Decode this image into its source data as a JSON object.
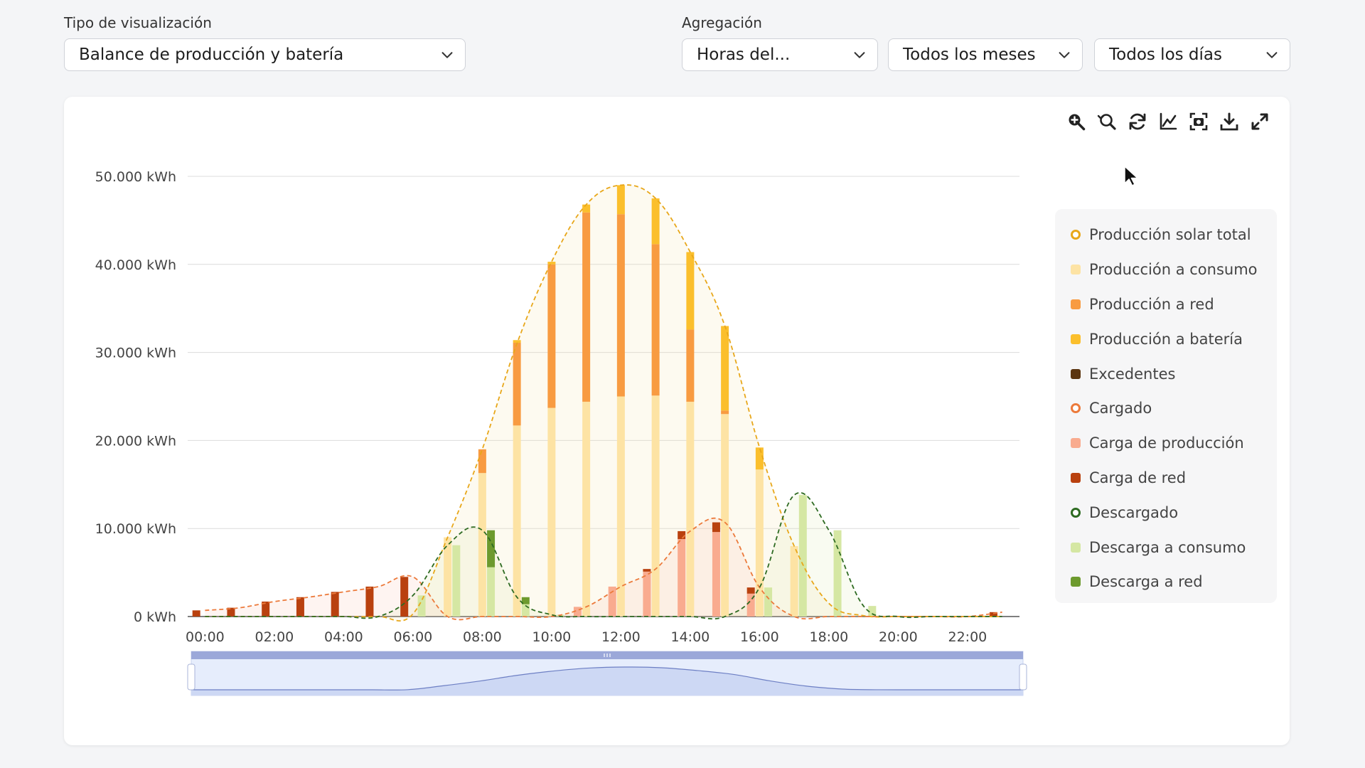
{
  "filters": {
    "viz_label": "Tipo de visualización",
    "viz_value": "Balance de producción y batería",
    "agg_label": "Agregación",
    "agg_value": "Horas del...",
    "months_value": "Todos los meses",
    "days_value": "Todos los días"
  },
  "toolbar": {
    "icons": [
      "zoom-in-icon",
      "zoom-reset-icon",
      "refresh-icon",
      "line-chart-icon",
      "screenshot-icon",
      "download-icon",
      "fullscreen-icon"
    ]
  },
  "colors": {
    "solar_total": "#e8a71a",
    "prod_consumo": "#fde3a4",
    "prod_red": "#f89b41",
    "prod_bateria": "#fbbf2c",
    "excedentes": "#5b3510",
    "cargado": "#ec7a3b",
    "carga_produccion": "#f9ab8f",
    "carga_red": "#b9410f",
    "descargado": "#2e6b22",
    "descarga_consumo": "#d5e7a3",
    "descarga_red": "#6d9a2e"
  },
  "legend": [
    {
      "label": "Producción solar total",
      "color_key": "solar_total",
      "ring": true
    },
    {
      "label": "Producción a consumo",
      "color_key": "prod_consumo",
      "ring": false
    },
    {
      "label": "Producción a red",
      "color_key": "prod_red",
      "ring": false
    },
    {
      "label": "Producción a batería",
      "color_key": "prod_bateria",
      "ring": false
    },
    {
      "label": "Excedentes",
      "color_key": "excedentes",
      "ring": false
    },
    {
      "label": "Cargado",
      "color_key": "cargado",
      "ring": true
    },
    {
      "label": "Carga de producción",
      "color_key": "carga_produccion",
      "ring": false
    },
    {
      "label": "Carga de red",
      "color_key": "carga_red",
      "ring": false
    },
    {
      "label": "Descargado",
      "color_key": "descargado",
      "ring": true
    },
    {
      "label": "Descarga a consumo",
      "color_key": "descarga_consumo",
      "ring": false
    },
    {
      "label": "Descarga a red",
      "color_key": "descarga_red",
      "ring": false
    }
  ],
  "chart_data": {
    "type": "bar",
    "stacked": true,
    "hours": [
      "00:00",
      "01:00",
      "02:00",
      "03:00",
      "04:00",
      "05:00",
      "06:00",
      "07:00",
      "08:00",
      "09:00",
      "10:00",
      "11:00",
      "12:00",
      "13:00",
      "14:00",
      "15:00",
      "16:00",
      "17:00",
      "18:00",
      "19:00",
      "20:00",
      "21:00",
      "22:00",
      "23:00"
    ],
    "x_tick_labels": [
      "00:00",
      "02:00",
      "04:00",
      "06:00",
      "08:00",
      "10:00",
      "12:00",
      "14:00",
      "16:00",
      "18:00",
      "20:00",
      "22:00"
    ],
    "y_tick_labels": [
      "0 kWh",
      "10.000 kWh",
      "20.000 kWh",
      "30.000 kWh",
      "40.000 kWh",
      "50.000 kWh"
    ],
    "ylim": [
      0,
      50000
    ],
    "grid": true,
    "legend_position": "right",
    "production_stack": {
      "produccion_a_consumo": [
        0,
        0,
        0,
        0,
        0,
        0,
        0,
        9000,
        16300,
        21700,
        23700,
        24400,
        25000,
        25100,
        24400,
        23000,
        16700,
        8000,
        0,
        0,
        0,
        0,
        0,
        0
      ],
      "produccion_a_red": [
        0,
        0,
        0,
        0,
        0,
        0,
        0,
        0,
        2700,
        9400,
        16300,
        21500,
        20700,
        17200,
        8200,
        400,
        0,
        0,
        0,
        0,
        0,
        0,
        0,
        0
      ],
      "produccion_a_bateria": [
        0,
        0,
        0,
        0,
        0,
        0,
        0,
        0,
        0,
        300,
        300,
        900,
        3300,
        5200,
        8800,
        9600,
        2500,
        0,
        0,
        0,
        0,
        0,
        0,
        0
      ],
      "excedentes": [
        0,
        0,
        0,
        0,
        0,
        0,
        0,
        0,
        0,
        0,
        0,
        0,
        0,
        0,
        0,
        0,
        0,
        0,
        0,
        0,
        0,
        0,
        0,
        0
      ]
    },
    "charge_stack": {
      "carga_de_produccion": [
        0,
        0,
        0,
        0,
        0,
        0,
        0,
        0,
        0,
        0,
        0,
        1100,
        3400,
        5100,
        8800,
        9600,
        2600,
        0,
        0,
        0,
        0,
        0,
        0,
        0
      ],
      "carga_de_red": [
        700,
        1000,
        1700,
        2200,
        2800,
        3400,
        4500,
        0,
        0,
        0,
        0,
        0,
        0,
        300,
        900,
        1100,
        700,
        0,
        0,
        0,
        0,
        0,
        0,
        500
      ]
    },
    "discharge_stack": {
      "descarga_a_consumo": [
        0,
        0,
        0,
        0,
        0,
        0,
        2400,
        8100,
        5600,
        1400,
        200,
        0,
        0,
        0,
        0,
        0,
        3300,
        13800,
        9800,
        1200,
        0,
        0,
        0,
        0
      ],
      "descarga_a_red": [
        0,
        0,
        0,
        0,
        0,
        0,
        0,
        0,
        4200,
        800,
        0,
        0,
        0,
        0,
        0,
        0,
        0,
        0,
        0,
        0,
        0,
        0,
        0,
        0
      ]
    },
    "lines": {
      "produccion_solar_total": [
        0,
        0,
        0,
        0,
        0,
        0,
        300,
        9000,
        19000,
        31000,
        40300,
        46800,
        49000,
        47500,
        41400,
        33000,
        19200,
        8000,
        1500,
        100,
        0,
        0,
        0,
        0
      ],
      "cargado": [
        700,
        1000,
        1700,
        2200,
        2800,
        3400,
        4500,
        0,
        0,
        0,
        0,
        1100,
        3400,
        5400,
        9700,
        10700,
        3300,
        0,
        0,
        0,
        0,
        0,
        0,
        500
      ],
      "descargado": [
        0,
        0,
        0,
        0,
        0,
        0,
        2400,
        8100,
        9800,
        2200,
        200,
        0,
        0,
        0,
        0,
        0,
        3300,
        13800,
        9800,
        1200,
        0,
        0,
        0,
        0
      ]
    }
  }
}
